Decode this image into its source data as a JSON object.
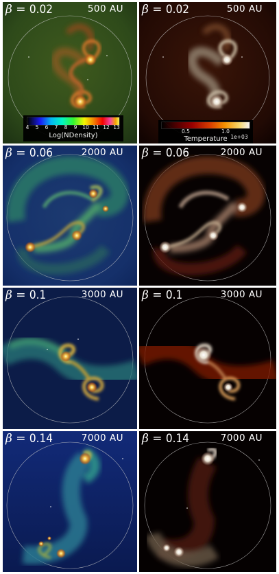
{
  "rows": [
    {
      "beta": "0.02",
      "scale": "500 AU"
    },
    {
      "beta": "0.06",
      "scale": "2000 AU"
    },
    {
      "beta": "0.1",
      "scale": "3000 AU"
    },
    {
      "beta": "0.14",
      "scale": "7000 AU"
    }
  ],
  "density_colorbar": {
    "ticks": [
      "4",
      "5",
      "6",
      "7",
      "8",
      "9",
      "10",
      "11",
      "12",
      "13"
    ],
    "title": "Log(NDensity)"
  },
  "temperature_colorbar": {
    "ticks": [
      "0.5",
      "1.0"
    ],
    "exponent": "1e+03",
    "title": "Temperature"
  }
}
